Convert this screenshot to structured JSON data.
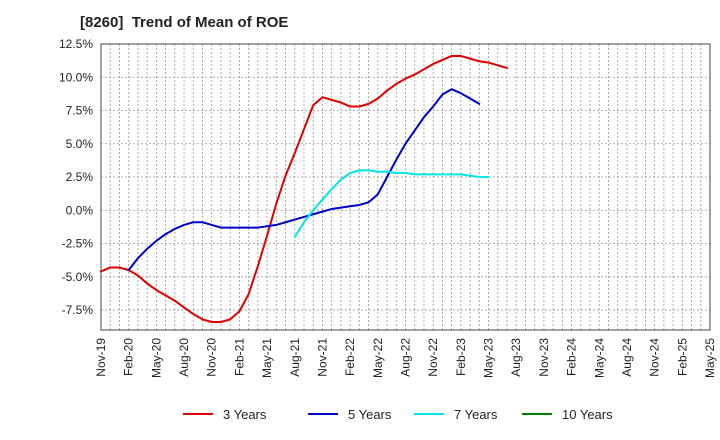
{
  "title": "[8260]  Trend of Mean of ROE",
  "colors": {
    "three_years": "#e00000",
    "five_years": "#0000cc",
    "seven_years": "#00e5e5",
    "ten_years": "#008000",
    "grid": "#999999",
    "axis": "#444444"
  },
  "chart_data": {
    "type": "line",
    "title": "[8260]  Trend of Mean of ROE",
    "xlabel": "",
    "ylabel": "",
    "ylim": [
      -9.0,
      12.5
    ],
    "yticks": [
      {
        "value": 12.5,
        "label": "12.5%"
      },
      {
        "value": 10.0,
        "label": "10.0%"
      },
      {
        "value": 7.5,
        "label": "7.5%"
      },
      {
        "value": 5.0,
        "label": "5.0%"
      },
      {
        "value": 2.5,
        "label": "2.5%"
      },
      {
        "value": 0.0,
        "label": "0.0%"
      },
      {
        "value": -2.5,
        "label": "-2.5%"
      },
      {
        "value": -5.0,
        "label": "-5.0%"
      },
      {
        "value": -7.5,
        "label": "-7.5%"
      }
    ],
    "xticks": [
      "Nov-19",
      "Feb-20",
      "May-20",
      "Aug-20",
      "Nov-20",
      "Feb-21",
      "May-21",
      "Aug-21",
      "Nov-21",
      "Feb-22",
      "May-22",
      "Aug-22",
      "Nov-22",
      "Feb-23",
      "May-23",
      "Aug-23",
      "Nov-23",
      "Feb-24",
      "May-24",
      "Aug-24",
      "Nov-24",
      "Feb-25",
      "May-25"
    ],
    "grid": true,
    "legend_position": "bottom",
    "series": [
      {
        "name": "3 Years",
        "color_key": "three_years",
        "start_index": 0,
        "values": [
          -4.6,
          -4.3,
          -4.3,
          -4.5,
          -4.9,
          -5.5,
          -6.0,
          -6.4,
          -6.8,
          -7.3,
          -7.8,
          -8.2,
          -8.4,
          -8.4,
          -8.2,
          -7.6,
          -6.3,
          -4.2,
          -1.9,
          0.5,
          2.6,
          4.3,
          6.1,
          7.9,
          8.5,
          8.3,
          8.1,
          7.8,
          7.8,
          8.0,
          8.4,
          9.0,
          9.5,
          9.9,
          10.2,
          10.6,
          11.0,
          11.3,
          11.6,
          11.6,
          11.4,
          11.2,
          11.1,
          10.9,
          10.7
        ]
      },
      {
        "name": "5 Years",
        "color_key": "five_years",
        "start_index": 3,
        "values": [
          -4.5,
          -3.6,
          -2.9,
          -2.3,
          -1.8,
          -1.4,
          -1.1,
          -0.9,
          -0.9,
          -1.1,
          -1.3,
          -1.3,
          -1.3,
          -1.3,
          -1.3,
          -1.2,
          -1.1,
          -0.9,
          -0.7,
          -0.5,
          -0.3,
          -0.1,
          0.1,
          0.2,
          0.3,
          0.4,
          0.6,
          1.2,
          2.5,
          3.8,
          5.0,
          6.0,
          7.0,
          7.8,
          8.7,
          9.1,
          8.8,
          8.4,
          8.0
        ]
      },
      {
        "name": "7 Years",
        "color_key": "seven_years",
        "start_index": 21,
        "values": [
          -2.0,
          -0.9,
          0.0,
          0.8,
          1.6,
          2.3,
          2.8,
          3.0,
          3.0,
          2.9,
          2.9,
          2.8,
          2.8,
          2.7,
          2.7,
          2.7,
          2.7,
          2.7,
          2.7,
          2.6,
          2.5,
          2.5
        ]
      },
      {
        "name": "10 Years",
        "color_key": "ten_years",
        "start_index": 0,
        "values": []
      }
    ]
  }
}
